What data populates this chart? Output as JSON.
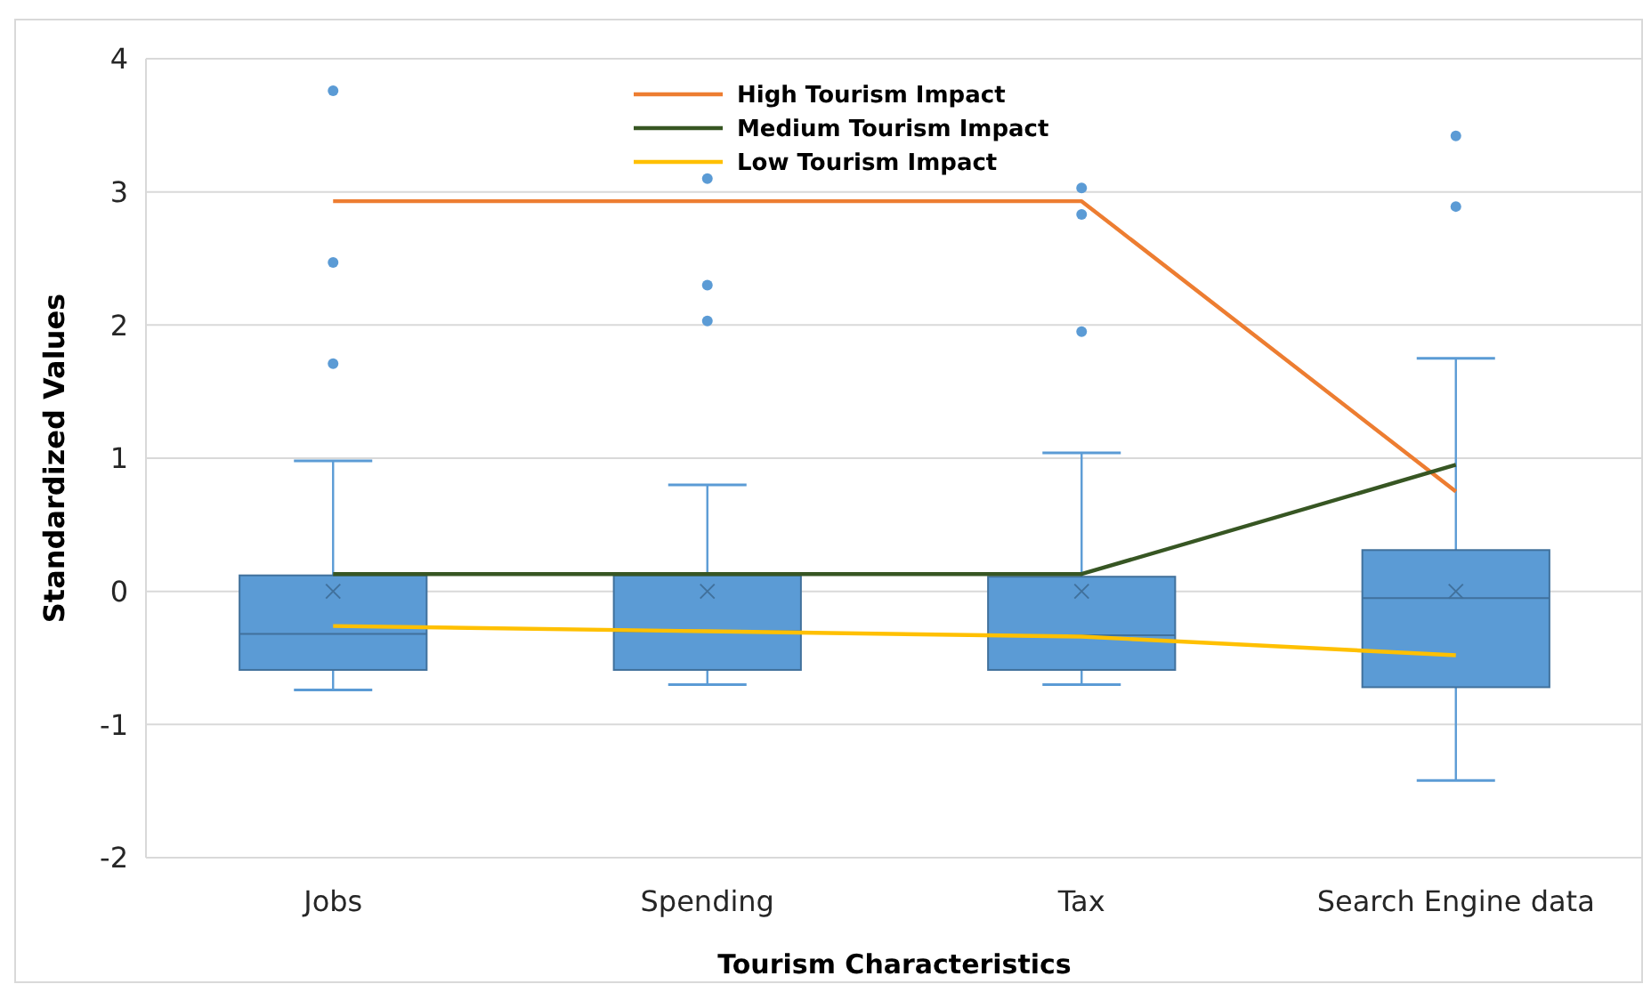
{
  "chart_data": {
    "type": "box",
    "xlabel": "Tourism Characteristics",
    "ylabel": "Standardized Values",
    "categories": [
      "Jobs",
      "Spending",
      "Tax",
      "Search Engine data"
    ],
    "ylim": [
      -2,
      4
    ],
    "yticks": [
      -2,
      -1,
      0,
      1,
      2,
      3,
      4
    ],
    "grid": "y",
    "legend": "top",
    "series": [
      {
        "color": "#5b9bd5",
        "boxes": [
          {
            "low": -0.74,
            "q1": -0.59,
            "median": -0.32,
            "q3": 0.12,
            "high": 0.98,
            "mean": 0,
            "outliers": [
              3.76,
              2.47,
              1.71
            ]
          },
          {
            "low": -0.7,
            "q1": -0.59,
            "median": -0.3,
            "q3": 0.12,
            "high": 0.8,
            "mean": 0,
            "outliers": [
              3.1,
              2.3,
              2.03
            ]
          },
          {
            "low": -0.7,
            "q1": -0.59,
            "median": -0.33,
            "q3": 0.11,
            "high": 1.04,
            "mean": 0,
            "outliers": [
              3.03,
              2.83,
              1.95
            ]
          },
          {
            "low": -1.42,
            "q1": -0.72,
            "median": -0.05,
            "q3": 0.31,
            "high": 1.75,
            "mean": 0,
            "outliers": [
              3.42,
              2.89
            ]
          }
        ]
      },
      {
        "type": "line",
        "name": "High Tourism Impact",
        "color": "#ed7d31",
        "values": [
          2.93,
          2.93,
          2.93,
          0.75
        ]
      },
      {
        "type": "line",
        "name": "Medium Tourism Impact",
        "color": "#375623",
        "values": [
          0.13,
          0.13,
          0.13,
          0.95
        ]
      },
      {
        "type": "line",
        "name": "Low Tourism Impact",
        "color": "#ffc000",
        "values": [
          -0.26,
          -0.3,
          -0.34,
          -0.48
        ]
      }
    ]
  }
}
